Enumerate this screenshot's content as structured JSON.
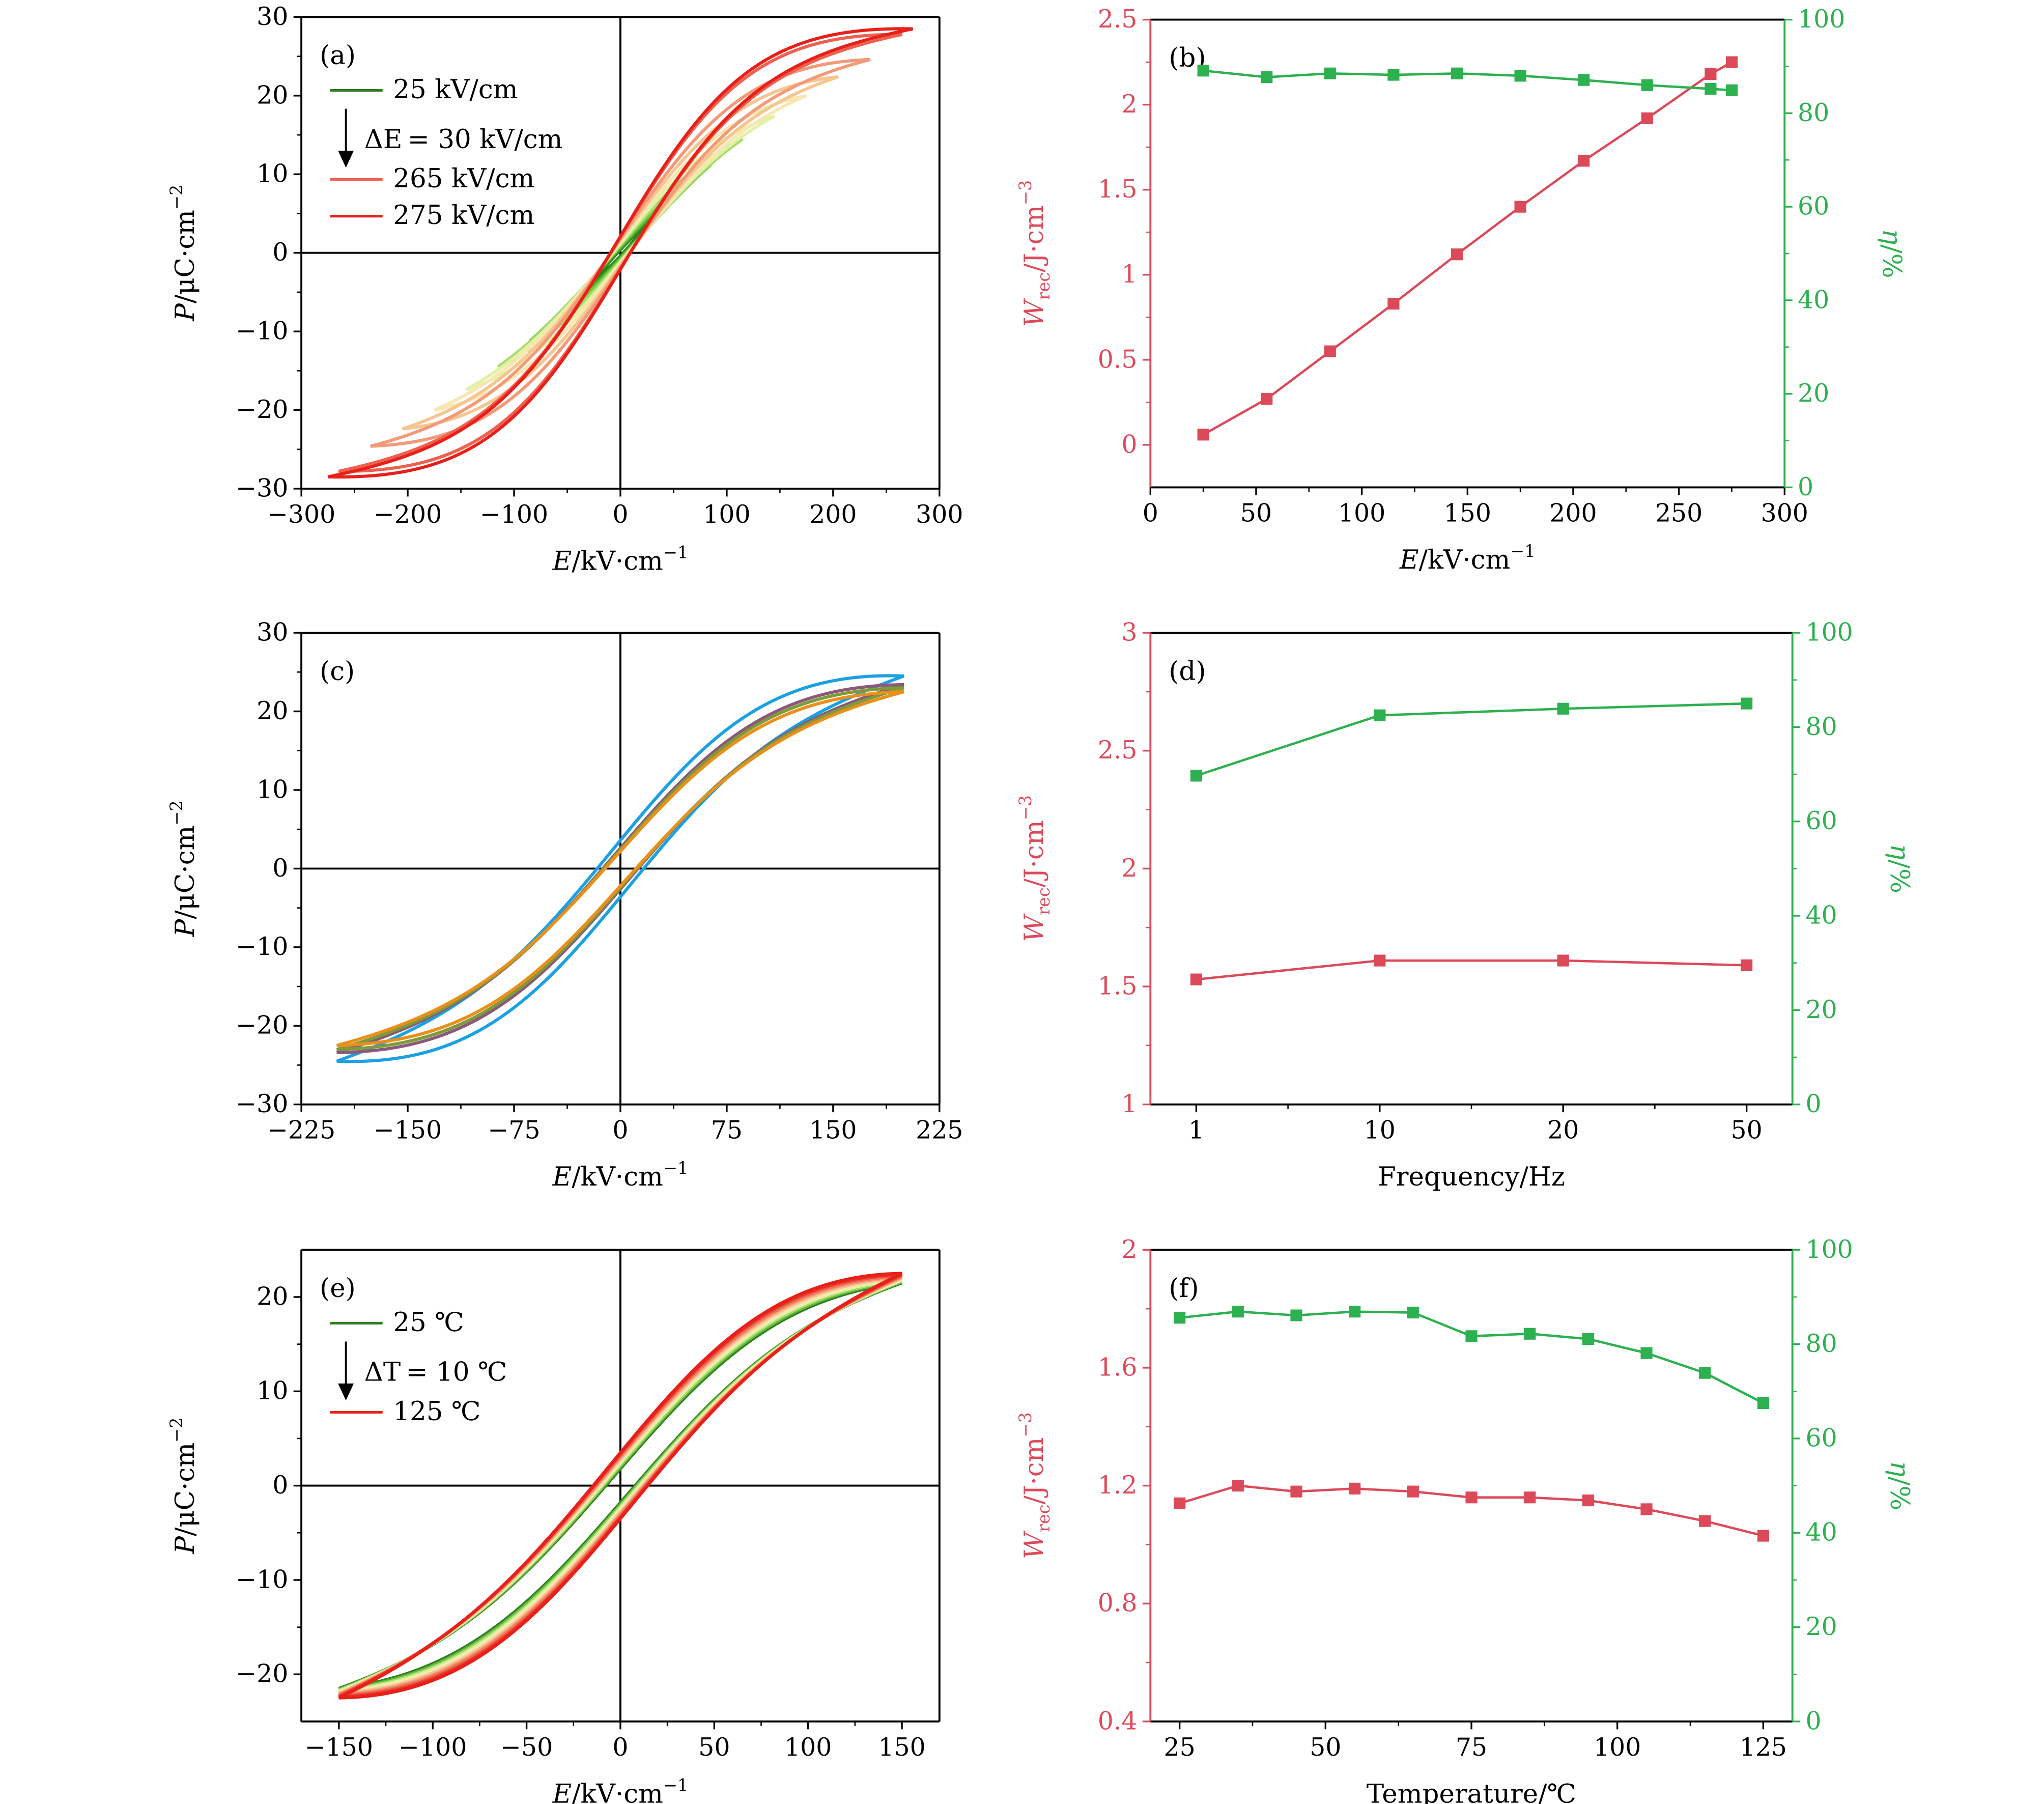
{
  "colors": {
    "wrec": "#dc4a5a",
    "eta": "#2db04f",
    "axis": "#000000"
  },
  "chart_data": [
    {
      "id": "a",
      "type": "line",
      "panel_label": "(a)",
      "xlabel": {
        "sym": "E",
        "unit": "/kV·cm",
        "sup": "−1"
      },
      "ylabel": {
        "sym": "P",
        "unit": "/μC·cm",
        "sup": "−2"
      },
      "xlim": [
        -300,
        300
      ],
      "ylim": [
        -30,
        30
      ],
      "xticks": [
        -300,
        -200,
        -100,
        0,
        100,
        200,
        300
      ],
      "yticks": [
        -30,
        -20,
        -10,
        0,
        10,
        20,
        30
      ],
      "legend": {
        "first": "25 kV/cm",
        "step_sym": "ΔE",
        "step_val": "= 30 kV/cm",
        "items": [
          "265 kV/cm",
          "275 kV/cm"
        ]
      },
      "loops": [
        {
          "Emax": 25,
          "Pmax": 3.6,
          "Pr": 0.4,
          "color": "#2e7d1e"
        },
        {
          "Emax": 55,
          "Pmax": 7.6,
          "Pr": 0.6,
          "color": "#3fa52a"
        },
        {
          "Emax": 85,
          "Pmax": 11.2,
          "Pr": 0.8,
          "color": "#6cc83a"
        },
        {
          "Emax": 115,
          "Pmax": 14.5,
          "Pr": 1.0,
          "color": "#a6dc6a"
        },
        {
          "Emax": 145,
          "Pmax": 17.4,
          "Pr": 1.2,
          "color": "#e3f0a8"
        },
        {
          "Emax": 175,
          "Pmax": 20.0,
          "Pr": 1.4,
          "color": "#f8e7b0"
        },
        {
          "Emax": 205,
          "Pmax": 22.4,
          "Pr": 1.6,
          "color": "#f6c590"
        },
        {
          "Emax": 235,
          "Pmax": 24.6,
          "Pr": 1.8,
          "color": "#f39a78"
        },
        {
          "Emax": 265,
          "Pmax": 27.8,
          "Pr": 2.0,
          "color": "#f06050"
        },
        {
          "Emax": 275,
          "Pmax": 28.5,
          "Pr": 2.1,
          "color": "#e8201a"
        }
      ]
    },
    {
      "id": "b",
      "type": "line",
      "panel_label": "(b)",
      "xlabel": {
        "sym": "E",
        "unit": "/kV·cm",
        "sup": "−1"
      },
      "ylabel": {
        "sym": "W",
        "sub": "rec",
        "unit": "/J·cm",
        "sup": "−3"
      },
      "y2label": {
        "sym": "η",
        "unit": "/%"
      },
      "xlim": [
        0,
        300
      ],
      "ylim": [
        -0.25,
        2.5
      ],
      "y2lim": [
        0,
        100
      ],
      "xticks": [
        0,
        50,
        100,
        150,
        200,
        250,
        300
      ],
      "yticks": [
        0,
        0.5,
        1.0,
        1.5,
        2.0,
        2.5
      ],
      "y2ticks": [
        0,
        20,
        40,
        60,
        80,
        100
      ],
      "x": [
        25,
        55,
        85,
        115,
        145,
        175,
        205,
        235,
        265,
        275
      ],
      "wrec": [
        0.06,
        0.27,
        0.55,
        0.83,
        1.12,
        1.4,
        1.67,
        1.92,
        2.18,
        2.25
      ],
      "eta": [
        89.1,
        87.7,
        88.5,
        88.2,
        88.5,
        88.0,
        87.1,
        86.0,
        85.2,
        84.9
      ]
    },
    {
      "id": "c",
      "type": "line",
      "panel_label": "(c)",
      "xlabel": {
        "sym": "E",
        "unit": "/kV·cm",
        "sup": "−1"
      },
      "ylabel": {
        "sym": "P",
        "unit": "/μC·cm",
        "sup": "−2"
      },
      "xlim": [
        -225,
        225
      ],
      "ylim": [
        -30,
        30
      ],
      "xticks": [
        -225,
        -150,
        -75,
        0,
        75,
        150,
        225
      ],
      "yticks": [
        -30,
        -20,
        -10,
        0,
        10,
        20,
        30
      ],
      "loops": [
        {
          "Emax": 200,
          "Pmax": 24.5,
          "Pr": 3.6,
          "color": "#1ba1e2"
        },
        {
          "Emax": 200,
          "Pmax": 23.4,
          "Pr": 2.6,
          "color": "#8a5a78"
        },
        {
          "Emax": 200,
          "Pmax": 23.0,
          "Pr": 2.4,
          "color": "#7f9a3a"
        },
        {
          "Emax": 200,
          "Pmax": 22.5,
          "Pr": 2.2,
          "color": "#e8901a"
        }
      ]
    },
    {
      "id": "d",
      "type": "line",
      "panel_label": "(d)",
      "xlabel": {
        "sym": "",
        "unit": "Frequency/Hz",
        "sup": ""
      },
      "ylabel": {
        "sym": "W",
        "sub": "rec",
        "unit": "/J·cm",
        "sup": "−3"
      },
      "y2label": {
        "sym": "η",
        "unit": "/%"
      },
      "categories": [
        "1",
        "10",
        "20",
        "50"
      ],
      "ylim": [
        1.0,
        3.0
      ],
      "y2lim": [
        0,
        100
      ],
      "yticks": [
        1.0,
        1.5,
        2.0,
        2.5,
        3.0
      ],
      "y2ticks": [
        0,
        20,
        40,
        60,
        80,
        100
      ],
      "wrec": [
        1.53,
        1.61,
        1.61,
        1.59
      ],
      "eta": [
        69.7,
        82.5,
        83.9,
        85.0
      ]
    },
    {
      "id": "e",
      "type": "line",
      "panel_label": "(e)",
      "xlabel": {
        "sym": "E",
        "unit": "/kV·cm",
        "sup": "−1"
      },
      "ylabel": {
        "sym": "P",
        "unit": "/μC·cm",
        "sup": "−2"
      },
      "xlim": [
        -170,
        170
      ],
      "ylim": [
        -25,
        25
      ],
      "xticks": [
        -150,
        -100,
        -50,
        0,
        50,
        100,
        150
      ],
      "yticks": [
        -20,
        -10,
        0,
        10,
        20
      ],
      "legend": {
        "first": "25 ℃",
        "step_sym": "ΔT",
        "step_val": "= 10 ℃",
        "items": [
          "125 ℃"
        ]
      },
      "loops": [
        {
          "Emax": 150,
          "Pmax": 21.5,
          "Pr": 1.8,
          "color": "#2e7d1e"
        },
        {
          "Emax": 150,
          "Pmax": 21.6,
          "Pr": 2.0,
          "color": "#5fb83a"
        },
        {
          "Emax": 150,
          "Pmax": 21.7,
          "Pr": 2.2,
          "color": "#a6dc6a"
        },
        {
          "Emax": 150,
          "Pmax": 21.8,
          "Pr": 2.4,
          "color": "#e3f0a8"
        },
        {
          "Emax": 150,
          "Pmax": 21.9,
          "Pr": 2.6,
          "color": "#f8e7b0"
        },
        {
          "Emax": 150,
          "Pmax": 22.0,
          "Pr": 2.8,
          "color": "#f6c590"
        },
        {
          "Emax": 150,
          "Pmax": 22.1,
          "Pr": 3.0,
          "color": "#f3a078"
        },
        {
          "Emax": 150,
          "Pmax": 22.2,
          "Pr": 3.1,
          "color": "#f07860"
        },
        {
          "Emax": 150,
          "Pmax": 22.3,
          "Pr": 3.3,
          "color": "#ec5040"
        },
        {
          "Emax": 150,
          "Pmax": 22.4,
          "Pr": 3.4,
          "color": "#e83020"
        },
        {
          "Emax": 150,
          "Pmax": 22.5,
          "Pr": 3.5,
          "color": "#e8201a"
        }
      ]
    },
    {
      "id": "f",
      "type": "line",
      "panel_label": "(f)",
      "xlabel": {
        "sym": "",
        "unit": "Temperature/℃",
        "sup": ""
      },
      "ylabel": {
        "sym": "W",
        "sub": "rec",
        "unit": "/J·cm",
        "sup": "−3"
      },
      "y2label": {
        "sym": "η",
        "unit": "/%"
      },
      "xlim": [
        20,
        130
      ],
      "ylim": [
        0.4,
        2.0
      ],
      "y2lim": [
        0,
        100
      ],
      "xticks": [
        25,
        50,
        75,
        100,
        125
      ],
      "yticks": [
        0.4,
        0.8,
        1.2,
        1.6,
        2.0
      ],
      "y2ticks": [
        0,
        20,
        40,
        60,
        80,
        100
      ],
      "x": [
        25,
        35,
        45,
        55,
        65,
        75,
        85,
        95,
        105,
        115,
        125
      ],
      "wrec": [
        1.14,
        1.2,
        1.18,
        1.19,
        1.18,
        1.16,
        1.16,
        1.15,
        1.12,
        1.08,
        1.03
      ],
      "eta": [
        85.6,
        86.9,
        86.1,
        86.9,
        86.7,
        81.7,
        82.2,
        81.1,
        78.1,
        73.9,
        67.5
      ]
    }
  ]
}
